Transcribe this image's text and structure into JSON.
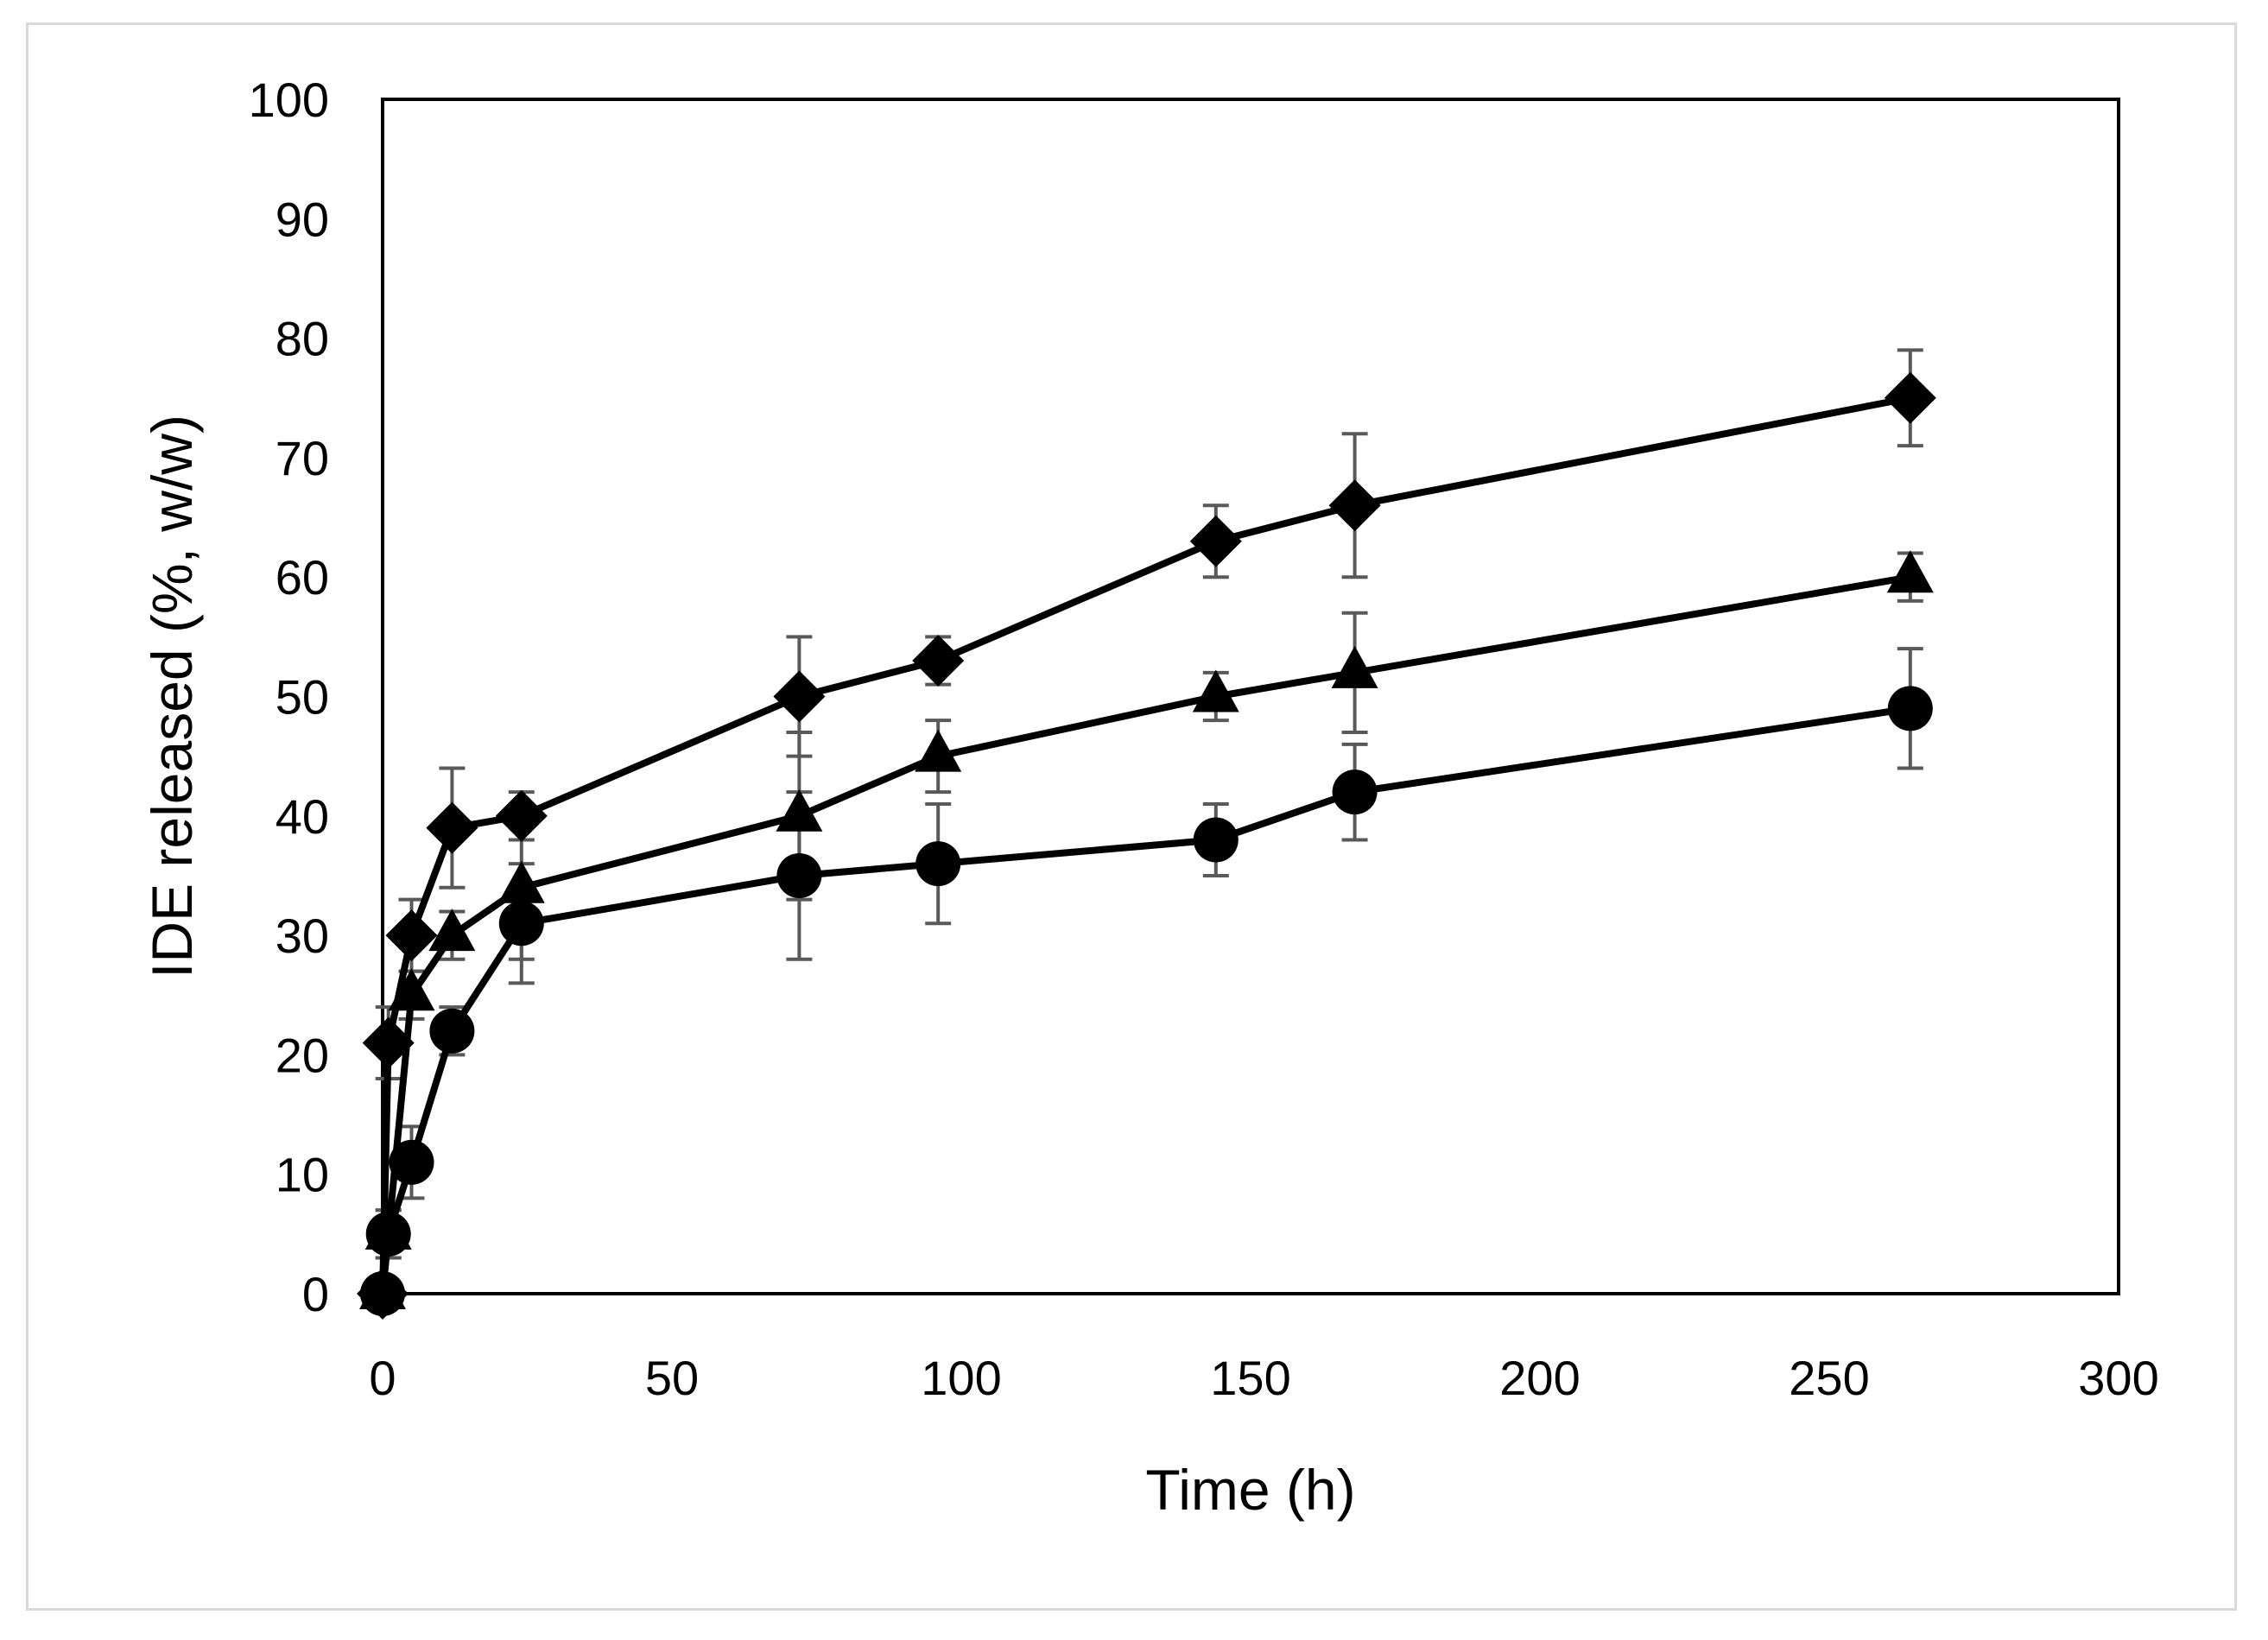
{
  "chart_data": {
    "type": "line",
    "title": "",
    "xlabel": "Time (h)",
    "ylabel": "IDE released (%, w/w)",
    "xlim": [
      0,
      300
    ],
    "ylim": [
      0,
      100
    ],
    "xticks": [
      0,
      50,
      100,
      150,
      200,
      250,
      300
    ],
    "yticks": [
      0,
      10,
      20,
      30,
      40,
      50,
      60,
      70,
      80,
      90,
      100
    ],
    "grid": false,
    "legend": "none",
    "colors": {
      "line": "#000000",
      "marker": "#000000",
      "errorbar": "#595959",
      "frame": "#d9d9d9"
    },
    "series": [
      {
        "marker": "diamond",
        "x": [
          0,
          1,
          5,
          12,
          24,
          72,
          96,
          144,
          168,
          264
        ],
        "y": [
          0,
          21,
          30,
          39,
          40,
          50,
          53,
          63,
          66,
          75
        ],
        "err": [
          0,
          3,
          3,
          5,
          2,
          5,
          2,
          3,
          6,
          4
        ]
      },
      {
        "marker": "triangle",
        "x": [
          0,
          1,
          5,
          12,
          24,
          72,
          96,
          144,
          168,
          264
        ],
        "y": [
          0,
          5,
          25,
          30,
          34,
          40,
          45,
          50,
          52,
          60
        ],
        "err": [
          0,
          2,
          2,
          2,
          6,
          7,
          3,
          2,
          5,
          2
        ]
      },
      {
        "marker": "circle",
        "x": [
          0,
          1,
          5,
          12,
          24,
          72,
          96,
          144,
          168,
          264
        ],
        "y": [
          0,
          5,
          11,
          22,
          31,
          35,
          36,
          38,
          42,
          49
        ],
        "err": [
          0,
          2,
          3,
          2,
          5,
          7,
          5,
          3,
          4,
          5
        ]
      }
    ]
  }
}
